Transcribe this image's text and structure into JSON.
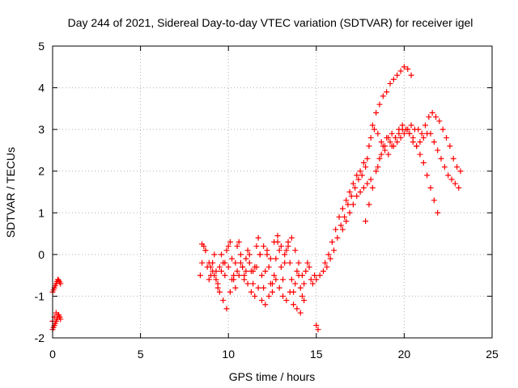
{
  "chart_data": {
    "type": "scatter",
    "title": "Day 244 of 2021, Sidereal Day-to-day VTEC variation (SDTVAR) for receiver igel",
    "xlabel": "GPS time / hours",
    "ylabel": "SDTVAR / TECUs",
    "xlim": [
      0,
      25
    ],
    "ylim": [
      -2,
      5
    ],
    "xticks": [
      "0",
      "5",
      "10",
      "15",
      "20",
      "25"
    ],
    "yticks": [
      "-2",
      "-1",
      "0",
      "1",
      "2",
      "3",
      "4",
      "5"
    ],
    "grid": true,
    "marker": "plus",
    "color": "#ff0000",
    "series": [
      {
        "name": "",
        "x": [
          0.0,
          0.05,
          0.1,
          0.15,
          0.2,
          0.25,
          0.3,
          0.35,
          0.4,
          0.45,
          0.0,
          0.05,
          0.1,
          0.15,
          0.2,
          0.25,
          0.3,
          0.35,
          0.4,
          0.45,
          0.0,
          0.1,
          0.2,
          0.3,
          0.4,
          8.4,
          8.5,
          8.6,
          8.7,
          8.8,
          8.9,
          9.0,
          9.1,
          9.2,
          9.3,
          9.4,
          9.5,
          9.6,
          9.7,
          9.8,
          9.9,
          10.0,
          10.1,
          10.2,
          10.3,
          10.4,
          10.5,
          10.6,
          10.7,
          10.8,
          10.9,
          11.0,
          11.1,
          11.2,
          11.3,
          11.4,
          11.5,
          11.6,
          11.7,
          11.8,
          11.9,
          12.0,
          12.1,
          12.2,
          12.3,
          12.4,
          12.5,
          12.6,
          12.7,
          12.8,
          12.9,
          13.0,
          13.1,
          13.2,
          13.3,
          13.4,
          13.5,
          13.6,
          13.7,
          13.8,
          13.9,
          14.0,
          14.1,
          14.2,
          14.3,
          14.4,
          14.5,
          14.6,
          14.7,
          14.8,
          14.9,
          8.5,
          8.7,
          8.9,
          9.1,
          9.3,
          9.5,
          9.7,
          9.9,
          10.1,
          10.3,
          10.5,
          10.7,
          10.9,
          11.1,
          11.3,
          11.5,
          11.7,
          11.9,
          12.1,
          12.3,
          12.5,
          12.7,
          12.9,
          13.1,
          13.3,
          13.5,
          13.7,
          13.9,
          14.1,
          14.3,
          9.0,
          9.2,
          9.4,
          9.6,
          9.8,
          10.0,
          10.2,
          10.4,
          10.6,
          10.8,
          11.0,
          11.2,
          11.4,
          11.6,
          11.8,
          12.0,
          12.2,
          12.4,
          12.6,
          12.8,
          13.0,
          13.2,
          13.4,
          13.6,
          13.8,
          14.0,
          14.2,
          15.0,
          15.1,
          15.0,
          15.2,
          15.4,
          15.6,
          15.8,
          16.0,
          16.2,
          16.4,
          16.6,
          16.8,
          17.0,
          17.2,
          17.4,
          17.6,
          17.8,
          18.0,
          18.2,
          18.4,
          18.6,
          18.8,
          19.0,
          19.2,
          19.4,
          19.6,
          19.8,
          20.0,
          20.2,
          20.4,
          15.5,
          15.7,
          15.9,
          16.1,
          16.3,
          16.5,
          16.7,
          16.9,
          17.1,
          17.3,
          17.5,
          17.7,
          17.9,
          18.1,
          18.3,
          18.5,
          18.7,
          18.9,
          19.1,
          19.3,
          19.5,
          19.7,
          19.9,
          20.1,
          20.3,
          20.5,
          20.7,
          20.9,
          21.1,
          21.3,
          21.5,
          21.7,
          21.9,
          17.8,
          18.0,
          18.2,
          18.4,
          18.6,
          18.8,
          19.0,
          19.2,
          19.4,
          19.6,
          19.8,
          20.0,
          20.2,
          20.4,
          20.6,
          20.8,
          21.0,
          21.2,
          21.4,
          21.6,
          21.8,
          22.0,
          22.2,
          22.4,
          22.6,
          22.8,
          23.0,
          23.2,
          18.5,
          18.7,
          18.9,
          19.1,
          19.3,
          19.5,
          19.7,
          19.9,
          20.1,
          20.3,
          20.5,
          20.7,
          20.9,
          21.1,
          21.3,
          21.5,
          21.7,
          21.9,
          22.1,
          22.3,
          22.5,
          22.7,
          22.9,
          23.1,
          16.5,
          16.7,
          16.9,
          17.1,
          17.3,
          17.5,
          17.7,
          17.9,
          18.1
        ],
        "y": [
          -0.9,
          -0.85,
          -0.8,
          -0.75,
          -0.7,
          -0.65,
          -0.6,
          -0.62,
          -0.66,
          -0.7,
          -1.8,
          -1.75,
          -1.7,
          -1.65,
          -1.6,
          -1.55,
          -1.5,
          -1.45,
          -1.5,
          -1.55,
          -1.6,
          -1.5,
          -1.4,
          -1.45,
          -1.5,
          -0.5,
          -0.2,
          0.2,
          0.1,
          -0.3,
          -0.6,
          -0.5,
          -0.2,
          0.0,
          -0.4,
          -0.8,
          -0.3,
          0.0,
          -0.2,
          -0.5,
          0.1,
          0.2,
          0.3,
          -0.1,
          -0.5,
          -0.2,
          0.2,
          0.3,
          0.0,
          -0.3,
          -0.6,
          -0.4,
          0.1,
          0.0,
          -0.4,
          -0.7,
          -0.3,
          0.2,
          0.4,
          0.0,
          -0.5,
          -0.8,
          -0.4,
          0.0,
          -0.3,
          -0.7,
          -0.9,
          -0.5,
          -0.1,
          0.3,
          0.1,
          -0.3,
          -0.6,
          -0.2,
          0.1,
          0.2,
          -0.2,
          -0.6,
          -0.9,
          -0.7,
          -0.4,
          -0.5,
          -0.8,
          -1.0,
          -0.7,
          -0.4,
          -0.2,
          -0.3,
          -0.6,
          -0.7,
          -0.5,
          0.25,
          0.1,
          -0.2,
          -0.4,
          -0.6,
          -0.9,
          -1.1,
          -1.3,
          -0.9,
          -0.6,
          -0.4,
          -0.2,
          -0.5,
          -0.7,
          -0.9,
          -1.0,
          -0.8,
          -1.1,
          -1.2,
          -1.0,
          -0.7,
          -0.6,
          -0.8,
          -1.0,
          -1.1,
          -0.9,
          -1.2,
          -1.3,
          -1.4,
          -1.1,
          -0.3,
          -0.5,
          -0.7,
          -0.4,
          -0.2,
          -0.3,
          -0.6,
          -0.8,
          -0.5,
          -0.3,
          -0.1,
          -0.2,
          -0.4,
          -0.3,
          0.0,
          0.2,
          0.1,
          -0.1,
          0.3,
          0.45,
          0.2,
          0.0,
          0.3,
          0.4,
          0.1,
          -0.2,
          -0.5,
          -1.7,
          -1.8,
          -0.6,
          -0.5,
          -0.4,
          -0.3,
          -0.1,
          0.1,
          0.4,
          0.7,
          0.9,
          1.2,
          1.4,
          1.6,
          1.8,
          1.9,
          2.1,
          2.6,
          3.1,
          3.4,
          3.6,
          3.8,
          3.9,
          4.1,
          4.2,
          4.3,
          4.4,
          4.5,
          4.45,
          4.3,
          -0.2,
          0.0,
          0.3,
          0.6,
          0.9,
          1.1,
          1.3,
          1.5,
          1.7,
          1.9,
          2.0,
          2.2,
          2.3,
          2.8,
          3.0,
          2.9,
          2.7,
          2.5,
          2.4,
          2.6,
          2.8,
          3.0,
          3.1,
          3.0,
          2.9,
          2.8,
          2.6,
          2.4,
          2.2,
          1.9,
          1.6,
          1.3,
          1.0,
          0.8,
          1.2,
          1.6,
          2.0,
          2.3,
          2.6,
          2.8,
          2.7,
          2.6,
          2.7,
          2.8,
          2.9,
          3.0,
          3.1,
          3.0,
          3.0,
          2.9,
          3.1,
          3.3,
          3.4,
          3.3,
          3.2,
          3.0,
          2.8,
          2.6,
          2.3,
          2.1,
          2.0,
          2.1,
          2.4,
          2.6,
          2.8,
          2.9,
          2.8,
          2.9,
          3.0,
          3.0,
          2.9,
          2.7,
          2.6,
          2.7,
          2.8,
          2.9,
          2.9,
          2.7,
          2.5,
          2.3,
          2.1,
          1.9,
          1.8,
          1.7,
          1.6,
          0.6,
          0.8,
          1.0,
          1.2,
          1.4,
          1.5,
          1.6,
          1.7,
          1.8
        ]
      }
    ]
  }
}
